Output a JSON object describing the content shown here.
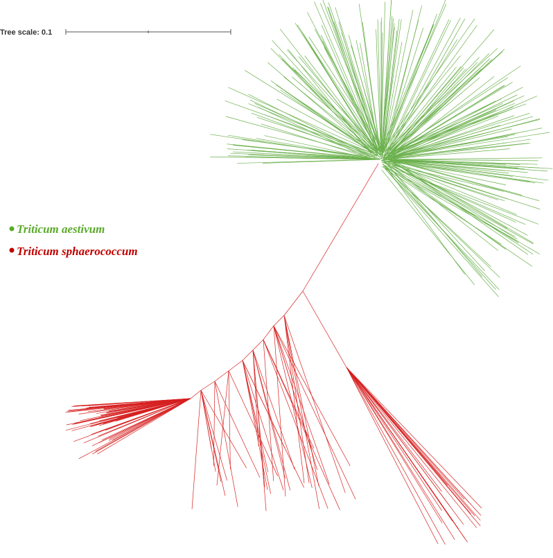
{
  "scale_bar": {
    "label": "Tree scale: 0.1"
  },
  "legend": [
    {
      "label": "Triticum aestivum"
    },
    {
      "label": "Triticum sphaerococcum"
    }
  ]
}
